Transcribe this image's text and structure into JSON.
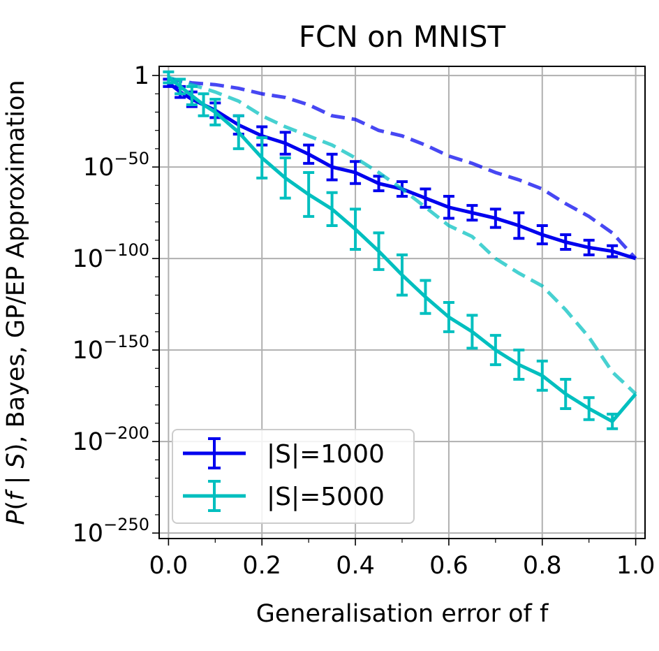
{
  "chart_data": {
    "type": "line",
    "title": "FCN on MNIST",
    "xlabel": "Generalisation error of f",
    "ylabel": "P(f | S), Bayes, GP/EP Approximation",
    "ylabel_parts": {
      "p1": "P",
      "p2": "(",
      "f": "f",
      "p3": " | ",
      "s": "S",
      "p4": "), Bayes, GP/EP Approximation"
    },
    "xlim": [
      -0.02,
      1.02
    ],
    "ylim_log10": [
      -253,
      5
    ],
    "yscale": "log",
    "grid": true,
    "x_ticks": [
      "0.0",
      "0.2",
      "0.4",
      "0.6",
      "0.8",
      "1.0"
    ],
    "x_tick_values": [
      0.0,
      0.2,
      0.4,
      0.6,
      0.8,
      1.0
    ],
    "y_ticks": [
      {
        "exp": 0,
        "base": "1",
        "sup": ""
      },
      {
        "exp": -50,
        "base": "10",
        "sup": "−50"
      },
      {
        "exp": -100,
        "base": "10",
        "sup": "−100"
      },
      {
        "exp": -150,
        "base": "10",
        "sup": "−150"
      },
      {
        "exp": -200,
        "base": "10",
        "sup": "−200"
      },
      {
        "exp": -250,
        "base": "10",
        "sup": "−250"
      }
    ],
    "legend_position": "lower-left",
    "series": [
      {
        "name": "|S|=1000",
        "color": "#0000ee",
        "x": [
          0.0,
          0.025,
          0.05,
          0.1,
          0.15,
          0.2,
          0.25,
          0.3,
          0.35,
          0.4,
          0.45,
          0.5,
          0.55,
          0.6,
          0.65,
          0.7,
          0.75,
          0.8,
          0.85,
          0.9,
          0.95,
          1.0
        ],
        "log10_mean": [
          -4,
          -9,
          -13,
          -19,
          -27,
          -33,
          -37,
          -43,
          -50,
          -53,
          -59,
          -62,
          -67,
          -72,
          -75,
          -78,
          -82,
          -87,
          -91,
          -94,
          -96,
          -100
        ],
        "log10_err": [
          2,
          3,
          4,
          4,
          5,
          5,
          6,
          5,
          7,
          6,
          4,
          4,
          5,
          6,
          4,
          5,
          7,
          5,
          4,
          4,
          3,
          0
        ],
        "baseline": {
          "name": "GP/EP approximation (dashed)",
          "x": [
            0.0,
            0.05,
            0.1,
            0.15,
            0.2,
            0.25,
            0.3,
            0.35,
            0.4,
            0.45,
            0.5,
            0.55,
            0.6,
            0.65,
            0.7,
            0.75,
            0.8,
            0.85,
            0.9,
            0.95,
            1.0
          ],
          "log10": [
            -2,
            -4,
            -5,
            -7,
            -10,
            -12,
            -16,
            -22,
            -24,
            -30,
            -33,
            -38,
            -44,
            -48,
            -53,
            -57,
            -62,
            -70,
            -77,
            -86,
            -100
          ]
        }
      },
      {
        "name": "|S|=5000",
        "color": "#00bfbf",
        "x": [
          0.0,
          0.025,
          0.05,
          0.075,
          0.1,
          0.15,
          0.2,
          0.25,
          0.3,
          0.35,
          0.4,
          0.45,
          0.5,
          0.55,
          0.6,
          0.65,
          0.7,
          0.75,
          0.8,
          0.85,
          0.9,
          0.95,
          1.0
        ],
        "log10_mean": [
          -1,
          -6,
          -11,
          -16,
          -20,
          -31,
          -45,
          -56,
          -65,
          -73,
          -84,
          -96,
          -109,
          -121,
          -132,
          -140,
          -150,
          -158,
          -164,
          -174,
          -182,
          -189,
          -174
        ],
        "log10_err": [
          3,
          4,
          5,
          6,
          7,
          9,
          11,
          11,
          12,
          9,
          11,
          10,
          11,
          9,
          8,
          9,
          8,
          8,
          8,
          8,
          6,
          4,
          0
        ],
        "baseline": {
          "name": "GP/EP approximation (dashed)",
          "x": [
            0.0,
            0.05,
            0.1,
            0.15,
            0.2,
            0.25,
            0.3,
            0.35,
            0.4,
            0.45,
            0.5,
            0.55,
            0.6,
            0.65,
            0.7,
            0.75,
            0.8,
            0.85,
            0.9,
            0.95,
            1.0
          ],
          "log10": [
            -1,
            -5,
            -9,
            -14,
            -22,
            -28,
            -33,
            -38,
            -45,
            -53,
            -62,
            -72,
            -82,
            -88,
            -100,
            -108,
            -115,
            -128,
            -143,
            -162,
            -174
          ]
        }
      }
    ]
  }
}
